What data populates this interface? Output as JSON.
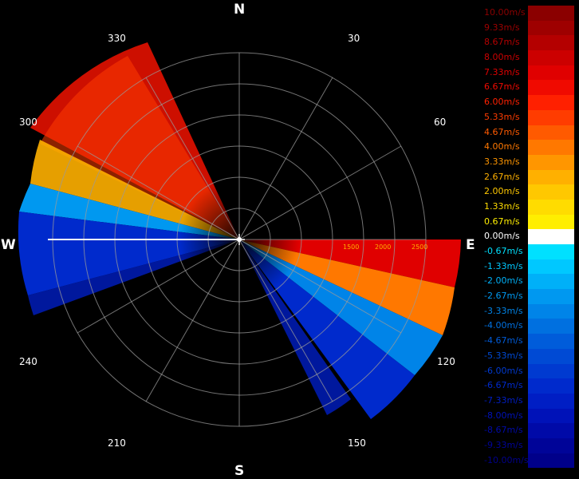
{
  "compass": {
    "north": "N",
    "south": "S",
    "east": "E",
    "west": "W"
  },
  "azimuth_labels": [
    "330",
    "30",
    "300",
    "60",
    "240",
    "120",
    "210",
    "150"
  ],
  "range_labels": [
    "1500",
    "2000",
    "2500"
  ],
  "legend": [
    {
      "label": "10.00m/s",
      "color": "#8b0000"
    },
    {
      "label": "9.33m/s",
      "color": "#9e0000"
    },
    {
      "label": "8.67m/s",
      "color": "#b40000"
    },
    {
      "label": "8.00m/s",
      "color": "#cc0000"
    },
    {
      "label": "7.33m/s",
      "color": "#e00000"
    },
    {
      "label": "6.67m/s",
      "color": "#f00a00"
    },
    {
      "label": "6.00m/s",
      "color": "#ff2000"
    },
    {
      "label": "5.33m/s",
      "color": "#ff3c00"
    },
    {
      "label": "4.67m/s",
      "color": "#ff5a00"
    },
    {
      "label": "4.00m/s",
      "color": "#ff7800"
    },
    {
      "label": "3.33m/s",
      "color": "#ff9600"
    },
    {
      "label": "2.67m/s",
      "color": "#ffb000"
    },
    {
      "label": "2.00m/s",
      "color": "#ffc800"
    },
    {
      "label": "1.33m/s",
      "color": "#ffdc00"
    },
    {
      "label": "0.67m/s",
      "color": "#ffee00"
    },
    {
      "label": "0.00m/s",
      "color": "#ffffff"
    },
    {
      "label": "-0.67m/s",
      "color": "#00e0ff"
    },
    {
      "label": "-1.33m/s",
      "color": "#00c8ff"
    },
    {
      "label": "-2.00m/s",
      "color": "#00b0f8"
    },
    {
      "label": "-2.67m/s",
      "color": "#0098f0"
    },
    {
      "label": "-3.33m/s",
      "color": "#0084e8"
    },
    {
      "label": "-4.00m/s",
      "color": "#0070e0"
    },
    {
      "label": "-4.67m/s",
      "color": "#005cda"
    },
    {
      "label": "-5.33m/s",
      "color": "#004ad4"
    },
    {
      "label": "-6.00m/s",
      "color": "#003ad0"
    },
    {
      "label": "-6.67m/s",
      "color": "#002acc"
    },
    {
      "label": "-7.33m/s",
      "color": "#001ec4"
    },
    {
      "label": "-8.00m/s",
      "color": "#0012b8"
    },
    {
      "label": "-8.67m/s",
      "color": "#000aa8"
    },
    {
      "label": "-9.33m/s",
      "color": "#000498"
    },
    {
      "label": "-10.00m/s",
      "color": "#00008a"
    }
  ]
}
